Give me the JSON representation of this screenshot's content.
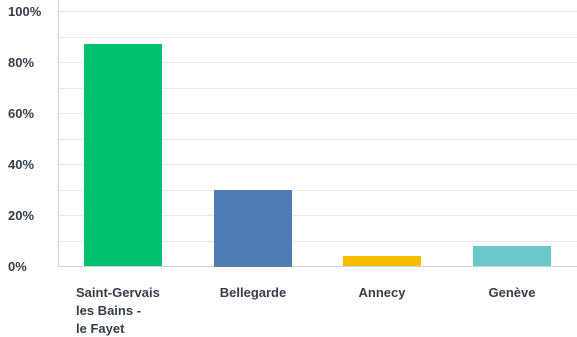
{
  "chart_data": {
    "type": "bar",
    "categories": [
      [
        "Saint-Gervais",
        "les Bains -",
        "le Fayet"
      ],
      [
        "Bellegarde"
      ],
      [
        "Annecy"
      ],
      [
        "Genève"
      ]
    ],
    "values": [
      87,
      30,
      4,
      8
    ],
    "colors": [
      "#00bf6f",
      "#507cb6",
      "#f9be00",
      "#6bc8cd"
    ],
    "ylim": [
      0,
      100
    ],
    "y_ticks": [
      {
        "value": 0,
        "label": "0%"
      },
      {
        "value": 20,
        "label": "20%"
      },
      {
        "value": 40,
        "label": "40%"
      },
      {
        "value": 60,
        "label": "60%"
      },
      {
        "value": 80,
        "label": "80%"
      },
      {
        "value": 100,
        "label": "100%"
      }
    ],
    "minor_gridlines": [
      10,
      30,
      50,
      70,
      90
    ],
    "grid": true,
    "legend": "none",
    "title": "",
    "xlabel": "",
    "ylabel": ""
  }
}
